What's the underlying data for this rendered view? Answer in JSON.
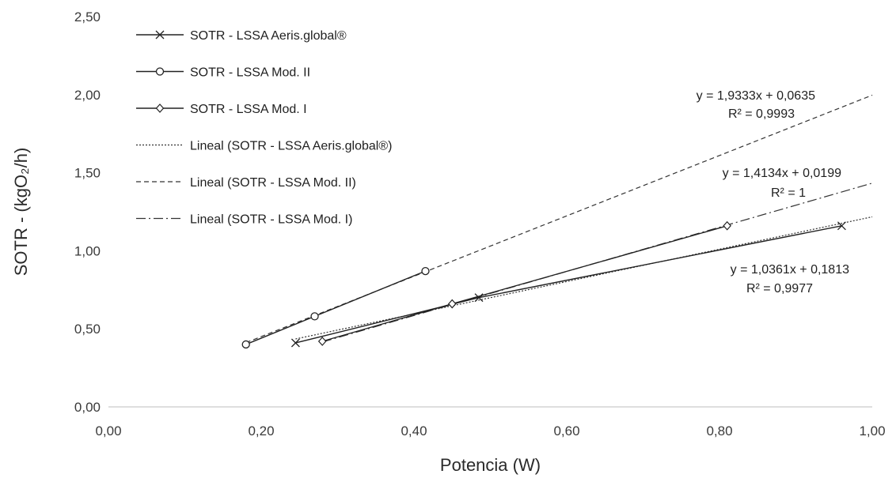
{
  "chart_data": {
    "type": "scatter",
    "title": "",
    "xlabel": "Potencia (W)",
    "ylabel": "SOTR - (kgO₂/h)",
    "xlim": [
      0,
      1
    ],
    "ylim": [
      0,
      2.5
    ],
    "x_ticks": [
      0,
      0.2,
      0.4,
      0.6,
      0.8,
      1.0
    ],
    "x_tick_labels": [
      "0,00",
      "0,20",
      "0,40",
      "0,60",
      "0,80",
      "1,00"
    ],
    "y_ticks": [
      0,
      0.5,
      1.0,
      1.5,
      2.0,
      2.5
    ],
    "y_tick_labels": [
      "0,00",
      "0,50",
      "1,00",
      "1,50",
      "2,00",
      "2,50"
    ],
    "grid": false,
    "legend_position": "top-left",
    "series": [
      {
        "name": "SOTR - LSSA Aeris.global®",
        "marker": "x",
        "color": "#222222",
        "points": [
          [
            0.245,
            0.41
          ],
          [
            0.485,
            0.7
          ],
          [
            0.96,
            1.16
          ]
        ]
      },
      {
        "name": "SOTR - LSSA Mod. II",
        "marker": "circle",
        "color": "#222222",
        "points": [
          [
            0.18,
            0.4
          ],
          [
            0.27,
            0.58
          ],
          [
            0.415,
            0.87
          ]
        ]
      },
      {
        "name": "SOTR - LSSA Mod. I",
        "marker": "diamond",
        "color": "#222222",
        "points": [
          [
            0.28,
            0.42
          ],
          [
            0.45,
            0.66
          ],
          [
            0.81,
            1.16
          ]
        ]
      }
    ],
    "trendlines": [
      {
        "name": "Lineal (SOTR - LSSA Aeris.global®)",
        "style": "dotted",
        "slope": 1.0361,
        "intercept": 0.1813,
        "x_range": [
          0.245,
          1.0
        ],
        "equation": "y = 1,0361x + 0,1813",
        "r2": "R² = 0,9977"
      },
      {
        "name": "Lineal (SOTR - LSSA Mod. II)",
        "style": "dashed",
        "slope": 1.9333,
        "intercept": 0.0635,
        "x_range": [
          0.18,
          1.0
        ],
        "equation": "y = 1,9333x + 0,0635",
        "r2": "R² = 0,9993"
      },
      {
        "name": "Lineal (SOTR - LSSA Mod. I)",
        "style": "dashdot",
        "slope": 1.4134,
        "intercept": 0.0199,
        "x_range": [
          0.28,
          1.0
        ],
        "equation": "y = 1,4134x + 0,0199",
        "r2": "R² = 1"
      }
    ]
  }
}
